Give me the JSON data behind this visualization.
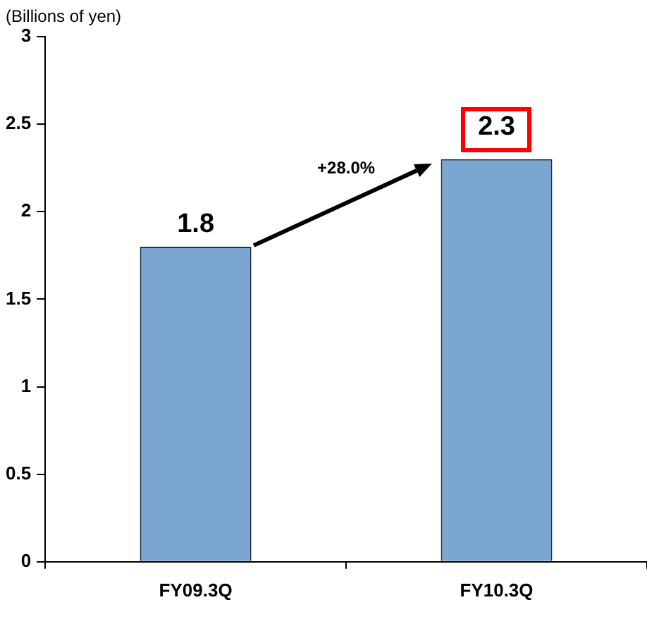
{
  "chart_data": {
    "type": "bar",
    "ylabel": "(Billions of yen)",
    "categories": [
      "FY09.3Q",
      "FY10.3Q"
    ],
    "values": [
      1.8,
      2.3
    ],
    "color": "#7ba6d2",
    "ylim": [
      0,
      3
    ],
    "yticks": [
      0,
      0.5,
      1,
      1.5,
      2,
      2.5,
      3
    ],
    "grid": false,
    "legend": false,
    "data_labels": true,
    "annotations": [
      "+28.0%"
    ]
  }
}
